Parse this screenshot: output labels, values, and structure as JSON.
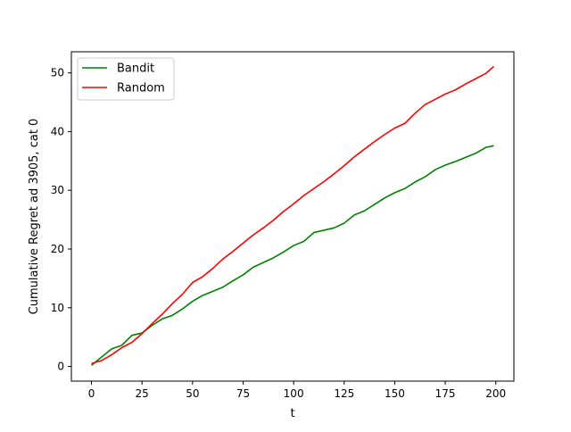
{
  "chart_data": {
    "type": "line",
    "title": "",
    "xlabel": "t",
    "ylabel": "Cumulative Regret ad 3905, cat 0",
    "xlim": [
      -9.95,
      208.95
    ],
    "ylim": [
      -2.5,
      53.6
    ],
    "xticks": [
      0,
      25,
      50,
      75,
      100,
      125,
      150,
      175,
      200
    ],
    "yticks": [
      0,
      10,
      20,
      30,
      40,
      50
    ],
    "grid": false,
    "legend_position": "top-left",
    "series": [
      {
        "name": "Bandit",
        "color": "#008000",
        "x": [
          0,
          5,
          10,
          15,
          20,
          25,
          30,
          35,
          40,
          45,
          50,
          55,
          60,
          65,
          70,
          75,
          80,
          85,
          90,
          95,
          100,
          105,
          110,
          115,
          120,
          125,
          130,
          135,
          140,
          145,
          150,
          155,
          160,
          165,
          170,
          175,
          180,
          185,
          190,
          195,
          199
        ],
        "y": [
          0.2,
          1.6,
          3.0,
          3.6,
          5.3,
          5.7,
          7.0,
          8.1,
          8.7,
          9.8,
          11.1,
          12.1,
          12.8,
          13.5,
          14.6,
          15.6,
          16.9,
          17.7,
          18.5,
          19.5,
          20.6,
          21.3,
          22.8,
          23.2,
          23.6,
          24.4,
          25.8,
          26.5,
          27.6,
          28.7,
          29.6,
          30.3,
          31.4,
          32.3,
          33.5,
          34.3,
          34.9,
          35.6,
          36.3,
          37.3,
          37.6
        ]
      },
      {
        "name": "Random",
        "color": "#ff0000",
        "x": [
          0,
          5,
          10,
          15,
          20,
          25,
          30,
          35,
          40,
          45,
          50,
          55,
          60,
          65,
          70,
          75,
          80,
          85,
          90,
          95,
          100,
          105,
          110,
          115,
          120,
          125,
          130,
          135,
          140,
          145,
          150,
          155,
          160,
          165,
          170,
          175,
          180,
          185,
          190,
          195,
          199
        ],
        "y": [
          0.5,
          1.0,
          2.0,
          3.2,
          4.1,
          5.6,
          7.3,
          8.9,
          10.7,
          12.3,
          14.3,
          15.3,
          16.7,
          18.3,
          19.6,
          21.0,
          22.4,
          23.6,
          24.9,
          26.4,
          27.7,
          29.1,
          30.3,
          31.5,
          32.8,
          34.2,
          35.7,
          37.0,
          38.3,
          39.5,
          40.6,
          41.4,
          43.1,
          44.6,
          45.5,
          46.4,
          47.1,
          48.1,
          49.0,
          49.9,
          51.1
        ]
      }
    ]
  }
}
